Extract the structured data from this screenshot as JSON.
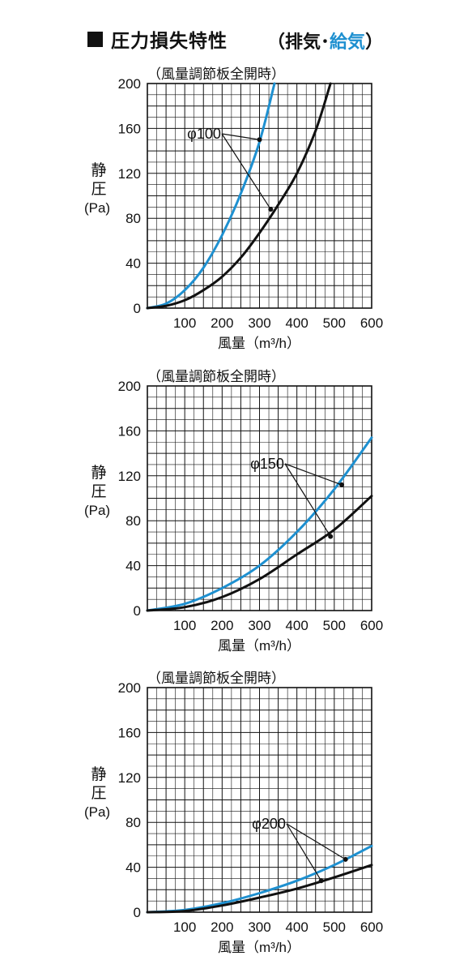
{
  "title": {
    "main": "圧力損失特性",
    "open_paren": "（",
    "exhaust": "排気",
    "separator": "･",
    "supply": "給気",
    "close_paren": "）"
  },
  "colors": {
    "exhaust": "#111111",
    "supply": "#1e90d0",
    "grid": "#111111"
  },
  "chart_data": [
    {
      "type": "line",
      "note": "（風量調節板全開時）",
      "ylabel": [
        "静",
        "圧",
        "(Pa)"
      ],
      "xlabel": "風量（m³/h）",
      "xlim": [
        0,
        600
      ],
      "ylim": [
        0,
        200
      ],
      "xticks": [
        "100",
        "200",
        "300",
        "400",
        "500",
        "600"
      ],
      "yticks": [
        "0",
        "40",
        "80",
        "120",
        "160",
        "200"
      ],
      "grid": true,
      "annotation": "φ100",
      "series": [
        {
          "role": "supply",
          "x": [
            0,
            50,
            100,
            150,
            200,
            250,
            300,
            340
          ],
          "y": [
            0,
            4,
            16,
            36,
            65,
            102,
            148,
            200
          ]
        },
        {
          "role": "exhaust",
          "x": [
            0,
            50,
            100,
            150,
            200,
            250,
            300,
            350,
            400,
            450,
            490
          ],
          "y": [
            0,
            2,
            7,
            16,
            28,
            45,
            67,
            92,
            120,
            158,
            200
          ]
        }
      ],
      "annotation_points": [
        {
          "x": 300,
          "y": 150
        },
        {
          "x": 330,
          "y": 88
        }
      ]
    },
    {
      "type": "line",
      "note": "（風量調節板全開時）",
      "ylabel": [
        "静",
        "圧",
        "(Pa)"
      ],
      "xlabel": "風量（m³/h）",
      "xlim": [
        0,
        600
      ],
      "ylim": [
        0,
        200
      ],
      "xticks": [
        "100",
        "200",
        "300",
        "400",
        "500",
        "600"
      ],
      "yticks": [
        "0",
        "40",
        "80",
        "120",
        "160",
        "200"
      ],
      "grid": true,
      "annotation": "φ150",
      "series": [
        {
          "role": "supply",
          "x": [
            0,
            100,
            200,
            300,
            400,
            500,
            600
          ],
          "y": [
            0,
            6,
            20,
            40,
            70,
            108,
            154
          ]
        },
        {
          "role": "exhaust",
          "x": [
            0,
            100,
            200,
            300,
            400,
            500,
            600
          ],
          "y": [
            0,
            3,
            12,
            28,
            50,
            72,
            102
          ]
        }
      ],
      "annotation_points": [
        {
          "x": 520,
          "y": 112
        },
        {
          "x": 490,
          "y": 66
        }
      ]
    },
    {
      "type": "line",
      "note": "（風量調節板全開時）",
      "ylabel": [
        "静",
        "圧",
        "(Pa)"
      ],
      "xlabel": "風量（m³/h）",
      "xlim": [
        0,
        600
      ],
      "ylim": [
        0,
        200
      ],
      "xticks": [
        "100",
        "200",
        "300",
        "400",
        "500",
        "600"
      ],
      "yticks": [
        "0",
        "40",
        "80",
        "120",
        "160",
        "200"
      ],
      "grid": true,
      "annotation": "φ200",
      "series": [
        {
          "role": "supply",
          "x": [
            0,
            100,
            200,
            300,
            400,
            500,
            600
          ],
          "y": [
            0,
            2,
            8,
            17,
            28,
            42,
            59
          ]
        },
        {
          "role": "exhaust",
          "x": [
            0,
            100,
            200,
            300,
            400,
            500,
            600
          ],
          "y": [
            0,
            1,
            6,
            13,
            21,
            31,
            42
          ]
        }
      ],
      "annotation_points": [
        {
          "x": 530,
          "y": 47
        },
        {
          "x": 465,
          "y": 28
        }
      ]
    }
  ]
}
